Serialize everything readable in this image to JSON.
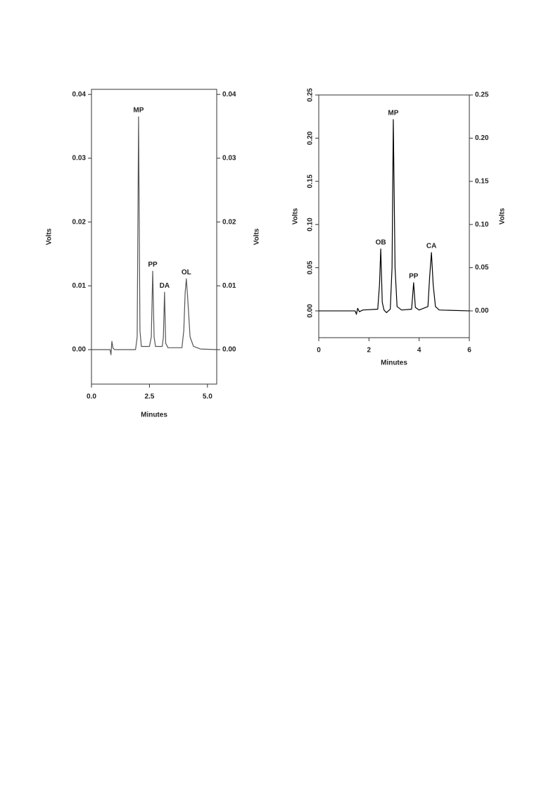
{
  "chart_data": [
    {
      "type": "line",
      "xlabel": "Minutes",
      "ylabel": "Volts",
      "y2label": "Volts",
      "color": "#555555",
      "x": [
        0,
        0.8,
        0.84,
        0.88,
        0.93,
        1.0,
        1.9,
        1.97,
        2.03,
        2.09,
        2.15,
        2.5,
        2.58,
        2.64,
        2.7,
        2.76,
        3.05,
        3.1,
        3.15,
        3.2,
        3.3,
        3.9,
        3.98,
        4.04,
        4.09,
        4.15,
        4.25,
        4.4,
        4.7,
        5.4
      ],
      "values": [
        0,
        0,
        -0.0008,
        0.0013,
        0.0002,
        0,
        0,
        0.002,
        0.0365,
        0.003,
        0.0005,
        0.0005,
        0.002,
        0.0123,
        0.002,
        0.0005,
        0.0005,
        0.002,
        0.009,
        0.001,
        0.0003,
        0.0003,
        0.003,
        0.009,
        0.0111,
        0.008,
        0.002,
        0.0005,
        0.0001,
        0
      ],
      "xlim": [
        0,
        5.4
      ],
      "ylim": [
        -0.0054,
        0.0408
      ],
      "y2lim": [
        -0.0054,
        0.0408
      ],
      "xticks": [
        {
          "value": 0,
          "label": "0.0"
        },
        {
          "value": 2.5,
          "label": "2.5"
        },
        {
          "value": 5,
          "label": "5.0"
        }
      ],
      "yticks": [
        {
          "value": 0,
          "label": "0.00"
        },
        {
          "value": 0.01,
          "label": "0.01"
        },
        {
          "value": 0.02,
          "label": "0.02"
        },
        {
          "value": 0.03,
          "label": "0.03"
        },
        {
          "value": 0.04,
          "label": "0.04"
        }
      ],
      "y2ticks": [
        {
          "value": 0,
          "label": "0.00"
        },
        {
          "value": 0.01,
          "label": "0.01"
        },
        {
          "value": 0.02,
          "label": "0.02"
        },
        {
          "value": 0.03,
          "label": "0.03"
        },
        {
          "value": 0.04,
          "label": "0.04"
        }
      ],
      "annotations": [
        {
          "text": "MP",
          "x": 2.03,
          "y": 0.0365
        },
        {
          "text": "PP",
          "x": 2.64,
          "y": 0.0123
        },
        {
          "text": "DA",
          "x": 3.15,
          "y": 0.009
        },
        {
          "text": "OL",
          "x": 4.09,
          "y": 0.0111
        }
      ]
    },
    {
      "type": "line",
      "xlabel": "Minutes",
      "ylabel": "Volts",
      "y2label": "Volts",
      "color": "#000000",
      "x": [
        0,
        1.45,
        1.5,
        1.55,
        1.62,
        1.75,
        2.35,
        2.42,
        2.47,
        2.53,
        2.6,
        2.7,
        2.85,
        2.92,
        2.97,
        3.04,
        3.12,
        3.3,
        3.7,
        3.78,
        3.85,
        4.0,
        4.35,
        4.42,
        4.49,
        4.56,
        4.65,
        4.8,
        6
      ],
      "values": [
        0,
        0,
        -0.004,
        0.003,
        -0.001,
        0.001,
        0.002,
        0.03,
        0.0717,
        0.01,
        0.001,
        -0.002,
        0.002,
        0.05,
        0.2215,
        0.05,
        0.005,
        0.001,
        0.002,
        0.0326,
        0.004,
        0.001,
        0.005,
        0.04,
        0.0676,
        0.03,
        0.005,
        0.001,
        0
      ],
      "xlim": [
        0,
        6
      ],
      "ylim": [
        -0.031,
        0.25
      ],
      "y2lim": [
        -0.031,
        0.25
      ],
      "xticks": [
        0,
        2,
        4,
        6
      ],
      "yticks": [
        {
          "value": 0,
          "label": "0.00"
        },
        {
          "value": 0.05,
          "label": "0.05"
        },
        {
          "value": 0.1,
          "label": "0.10"
        },
        {
          "value": 0.15,
          "label": "0.15"
        },
        {
          "value": 0.2,
          "label": "0.20"
        },
        0.25
      ],
      "y2ticks": [
        {
          "value": 0,
          "label": "0.00"
        },
        {
          "value": 0.05,
          "label": "0.05"
        },
        {
          "value": 0.1,
          "label": "0.10"
        },
        {
          "value": 0.15,
          "label": "0.15"
        },
        {
          "value": 0.2,
          "label": "0.20"
        },
        0.25
      ],
      "annotations": [
        {
          "text": "OB",
          "x": 2.47,
          "y": 0.0717
        },
        {
          "text": "MP",
          "x": 2.97,
          "y": 0.2215
        },
        {
          "text": "PP",
          "x": 3.78,
          "y": 0.0326
        },
        {
          "text": "CA",
          "x": 4.49,
          "y": 0.0676
        }
      ]
    }
  ]
}
